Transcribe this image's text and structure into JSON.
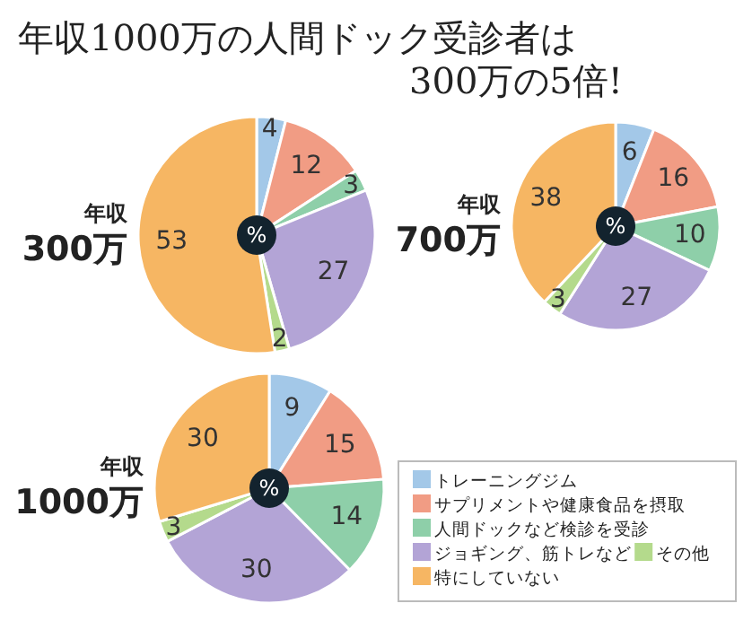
{
  "chart_data": [
    {
      "type": "pie",
      "title": "年収 300万",
      "annotations": [
        "年収1000万の人間ドック受診者は 300万の5倍!",
        "%"
      ],
      "values": [
        4,
        12,
        3,
        27,
        2,
        53
      ],
      "colors": [
        "#a3c8e8",
        "#f19c84",
        "#8ecfa9",
        "#b3a4d6",
        "#b4da8c",
        "#f6b663"
      ],
      "data_labels": true
    },
    {
      "type": "pie",
      "title": "年収 700万",
      "annotations": [
        "%"
      ],
      "values": [
        6,
        16,
        10,
        27,
        3,
        38
      ],
      "colors": [
        "#a3c8e8",
        "#f19c84",
        "#8ecfa9",
        "#b3a4d6",
        "#b4da8c",
        "#f6b663"
      ],
      "data_labels": true
    },
    {
      "type": "pie",
      "title": "年収 1000万",
      "annotations": [
        "%"
      ],
      "categories": [
        "トレーニングジム",
        "サプリメントや健康食品を摂取",
        "人間ドックなど検診を受診",
        "ジョギング、筋トレなど",
        "その他",
        "特にしていない"
      ],
      "values": [
        9,
        15,
        14,
        30,
        3,
        30
      ],
      "colors": [
        "#a3c8e8",
        "#f19c84",
        "#8ecfa9",
        "#b3a4d6",
        "#b4da8c",
        "#f6b663"
      ],
      "data_labels": true,
      "legend": "right"
    }
  ]
}
